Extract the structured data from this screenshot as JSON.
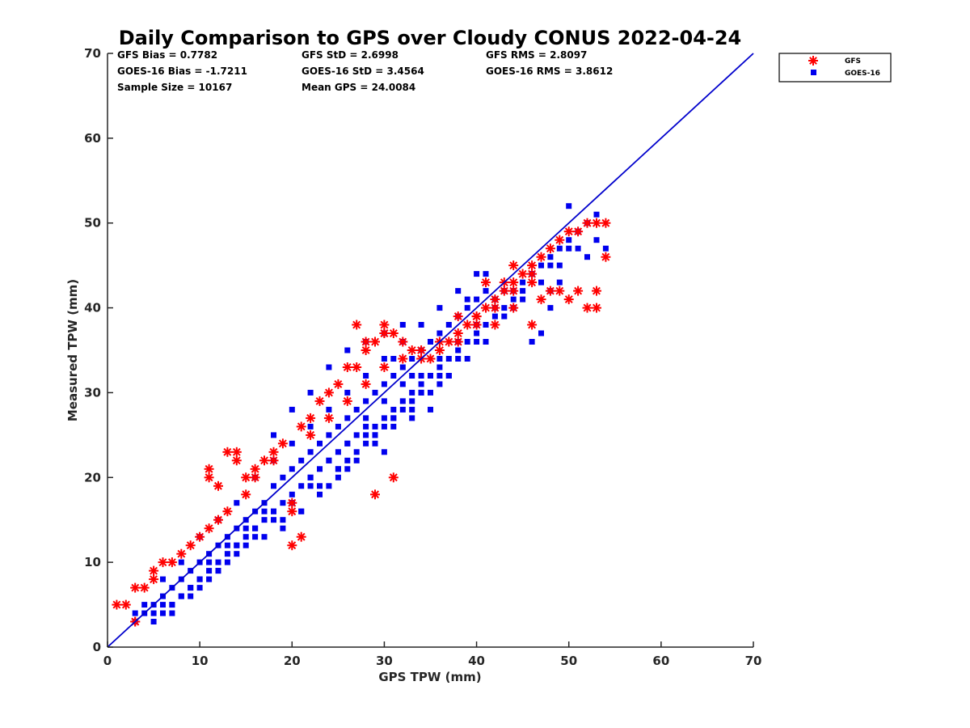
{
  "chart_data": {
    "type": "scatter",
    "title": "Daily Comparison to GPS over Cloudy CONUS 2022-04-24",
    "xlabel": "GPS TPW (mm)",
    "ylabel": "Measured TPW (mm)",
    "xlim": [
      0,
      70
    ],
    "ylim": [
      0,
      70
    ],
    "xticks": [
      "0",
      "10",
      "20",
      "30",
      "40",
      "50",
      "60",
      "70"
    ],
    "yticks": [
      "0",
      "10",
      "20",
      "30",
      "40",
      "50",
      "60",
      "70"
    ],
    "grid": false,
    "legend_position": "outside-top-right",
    "reference_line": {
      "x": [
        0,
        70
      ],
      "y": [
        0,
        70
      ],
      "color": "#0000cc"
    },
    "stats": [
      [
        "GFS Bias = 0.7782",
        "GFS StD = 2.6998",
        "GFS RMS = 2.8097"
      ],
      [
        "GOES-16 Bias = -1.7211",
        "GOES-16 StD = 3.4564",
        "GOES-16 RMS = 3.8612"
      ],
      [
        "Sample Size = 10167",
        "Mean GPS = 24.0084",
        ""
      ]
    ],
    "series": [
      {
        "name": "GOES-16",
        "marker": "square",
        "color": "#0000ee",
        "x": [
          3,
          4,
          5,
          5,
          6,
          6,
          7,
          7,
          8,
          8,
          9,
          9,
          10,
          10,
          11,
          11,
          12,
          12,
          13,
          13,
          14,
          14,
          15,
          15,
          16,
          16,
          17,
          17,
          18,
          18,
          19,
          19,
          20,
          20,
          21,
          21,
          22,
          22,
          23,
          23,
          24,
          24,
          25,
          25,
          26,
          26,
          27,
          27,
          28,
          28,
          29,
          29,
          30,
          30,
          31,
          31,
          32,
          32,
          33,
          33,
          34,
          34,
          35,
          35,
          36,
          36,
          37,
          37,
          38,
          38,
          39,
          39,
          40,
          40,
          41,
          41,
          42,
          43,
          44,
          45,
          46,
          47,
          48,
          49,
          50,
          51,
          52,
          53,
          54,
          6,
          8,
          10,
          12,
          14,
          16,
          18,
          20,
          22,
          24,
          26,
          28,
          30,
          32,
          34,
          36,
          38,
          40,
          42,
          44,
          46,
          48,
          50,
          4,
          6,
          8,
          10,
          12,
          14,
          16,
          18,
          20,
          22,
          24,
          26,
          28,
          30,
          32,
          34,
          36,
          38,
          40,
          44,
          48,
          52,
          5,
          7,
          9,
          11,
          13,
          15,
          17,
          19,
          21,
          23,
          25,
          27,
          29,
          31,
          33,
          35,
          37,
          39,
          41,
          43,
          45,
          47,
          49,
          51,
          18,
          20,
          22,
          24,
          26,
          28,
          30,
          32,
          25,
          27,
          29,
          31,
          33,
          35,
          23,
          21,
          19,
          31,
          33,
          29,
          30,
          46,
          48,
          50,
          47,
          49,
          51,
          53,
          45,
          43,
          41,
          39,
          9,
          11,
          13,
          15,
          17,
          24,
          26,
          28,
          30,
          32,
          34,
          36,
          38,
          40,
          42,
          3,
          7,
          12,
          16,
          20,
          25,
          29,
          33,
          37,
          41,
          36,
          34,
          31,
          28,
          26,
          22,
          18,
          14,
          10
        ],
        "y": [
          3,
          4,
          4,
          5,
          5,
          6,
          5,
          7,
          6,
          8,
          7,
          9,
          8,
          10,
          9,
          11,
          10,
          12,
          11,
          13,
          12,
          14,
          13,
          15,
          14,
          16,
          15,
          17,
          16,
          19,
          17,
          20,
          18,
          21,
          19,
          22,
          20,
          23,
          21,
          24,
          22,
          25,
          23,
          26,
          24,
          27,
          25,
          28,
          26,
          29,
          26,
          30,
          27,
          31,
          28,
          32,
          29,
          33,
          30,
          34,
          31,
          35,
          32,
          36,
          33,
          37,
          34,
          38,
          35,
          39,
          36,
          40,
          37,
          41,
          38,
          42,
          40,
          40,
          41,
          42,
          44,
          45,
          46,
          47,
          48,
          49,
          50,
          48,
          47,
          4,
          6,
          7,
          9,
          11,
          13,
          15,
          17,
          20,
          22,
          24,
          27,
          29,
          31,
          32,
          34,
          36,
          38,
          41,
          42,
          44,
          45,
          47,
          5,
          8,
          10,
          13,
          15,
          17,
          20,
          22,
          24,
          26,
          28,
          30,
          32,
          34,
          36,
          38,
          40,
          42,
          44,
          40,
          42,
          46,
          3,
          5,
          6,
          8,
          10,
          12,
          13,
          15,
          16,
          19,
          21,
          23,
          25,
          27,
          28,
          30,
          32,
          34,
          36,
          39,
          41,
          43,
          45,
          47,
          25,
          28,
          30,
          33,
          35,
          36,
          37,
          38,
          20,
          22,
          24,
          26,
          27,
          28,
          18,
          16,
          14,
          34,
          32,
          25,
          23,
          36,
          40,
          52,
          37,
          43,
          49,
          51,
          43,
          42,
          44,
          41,
          7,
          10,
          12,
          14,
          16,
          19,
          21,
          24,
          26,
          28,
          30,
          32,
          34,
          36,
          39,
          4,
          4,
          9,
          14,
          17,
          21,
          25,
          29,
          32,
          36,
          31,
          30,
          27,
          25,
          22,
          19,
          16,
          12,
          8
        ]
      },
      {
        "name": "GFS",
        "marker": "asterisk",
        "color": "#ff0000",
        "x": [
          1,
          2,
          3,
          3,
          4,
          5,
          5,
          6,
          7,
          8,
          9,
          10,
          11,
          11,
          12,
          13,
          13,
          14,
          15,
          15,
          16,
          17,
          18,
          19,
          20,
          20,
          21,
          22,
          23,
          24,
          25,
          26,
          27,
          28,
          29,
          30,
          30,
          31,
          32,
          33,
          34,
          35,
          36,
          37,
          38,
          39,
          40,
          41,
          42,
          43,
          44,
          45,
          46,
          47,
          48,
          49,
          50,
          51,
          52,
          53,
          54,
          29,
          31,
          30,
          20,
          21,
          28,
          27,
          41,
          43,
          44,
          46,
          48,
          50,
          52,
          53,
          54,
          38,
          40,
          42,
          44,
          46,
          47,
          49,
          51,
          53,
          3,
          11,
          12,
          14,
          16,
          18,
          22,
          24,
          26,
          28,
          30,
          32,
          34,
          36,
          38,
          40,
          42,
          44,
          46
        ],
        "y": [
          5,
          5,
          7,
          3,
          7,
          8,
          9,
          10,
          10,
          11,
          12,
          13,
          14,
          21,
          15,
          16,
          23,
          22,
          20,
          18,
          20,
          22,
          23,
          24,
          12,
          16,
          26,
          27,
          29,
          30,
          31,
          33,
          33,
          35,
          36,
          37,
          38,
          37,
          36,
          35,
          34,
          34,
          35,
          36,
          37,
          38,
          39,
          40,
          41,
          42,
          43,
          44,
          45,
          46,
          47,
          48,
          49,
          49,
          50,
          50,
          50,
          18,
          20,
          37,
          17,
          13,
          36,
          38,
          43,
          43,
          45,
          43,
          42,
          41,
          40,
          42,
          46,
          39,
          39,
          38,
          40,
          38,
          41,
          42,
          42,
          40,
          3,
          20,
          19,
          23,
          21,
          22,
          25,
          27,
          29,
          31,
          33,
          34,
          35,
          36,
          36,
          38,
          40,
          42,
          44
        ]
      }
    ]
  }
}
